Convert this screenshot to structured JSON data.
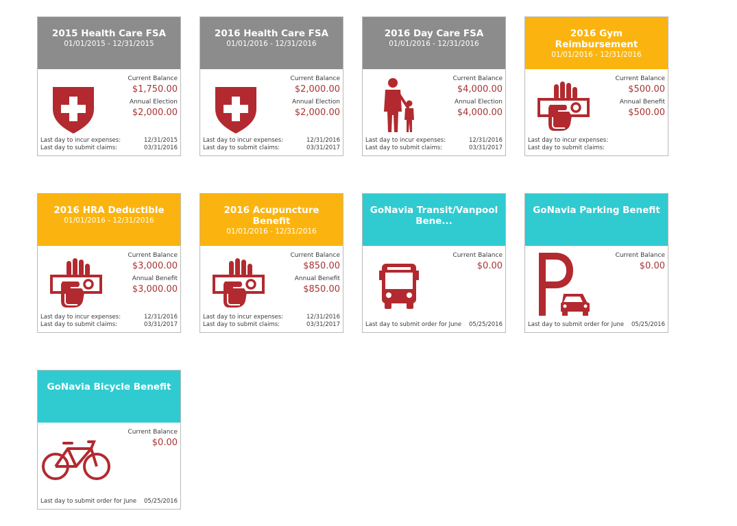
{
  "colors": {
    "gray_header": "#8c8c8c",
    "orange_header": "#fbb40f",
    "teal_header": "#2fcbd1",
    "icon_red": "#b22a2f",
    "amount_red": "#a83232"
  },
  "cards": [
    {
      "title": "2015 Health Care FSA",
      "dates": "01/01/2015 - 12/31/2015",
      "header_color": "gray",
      "icon": "shield-cross-icon",
      "label1": "Current Balance",
      "value1": "$1,750.00",
      "label2": "Annual Election",
      "value2": "$2,000.00",
      "footer": [
        {
          "label": "Last day to incur expenses:",
          "value": "12/31/2015"
        },
        {
          "label": "Last day to submit claims:",
          "value": "03/31/2016"
        }
      ]
    },
    {
      "title": "2016 Health Care FSA",
      "dates": "01/01/2016 - 12/31/2016",
      "header_color": "gray",
      "icon": "shield-cross-icon",
      "label1": "Current Balance",
      "value1": "$2,000.00",
      "label2": "Annual Election",
      "value2": "$2,000.00",
      "footer": [
        {
          "label": "Last day to incur expenses:",
          "value": "12/31/2016"
        },
        {
          "label": "Last day to submit claims:",
          "value": "03/31/2017"
        }
      ]
    },
    {
      "title": "2016 Day Care FSA",
      "dates": "01/01/2016 - 12/31/2016",
      "header_color": "gray",
      "icon": "parent-child-icon",
      "label1": "Current Balance",
      "value1": "$4,000.00",
      "label2": "Annual Election",
      "value2": "$4,000.00",
      "footer": [
        {
          "label": "Last day to incur expenses:",
          "value": "12/31/2016"
        },
        {
          "label": "Last day to submit claims:",
          "value": "03/31/2017"
        }
      ]
    },
    {
      "title": "2016 Gym Reimbursement",
      "dates": "01/01/2016 - 12/31/2016",
      "header_color": "orange",
      "icon": "hand-money-icon",
      "label1": "Current Balance",
      "value1": "$500.00",
      "label2": "Annual Benefit",
      "value2": "$500.00",
      "footer": [
        {
          "label": "Last day to incur expenses:",
          "value": ""
        },
        {
          "label": "Last day to submit claims:",
          "value": ""
        }
      ]
    },
    {
      "title": "2016 HRA Deductible",
      "dates": "01/01/2016 - 12/31/2016",
      "header_color": "orange",
      "icon": "hand-money-icon",
      "label1": "Current Balance",
      "value1": "$3,000.00",
      "label2": "Annual Benefit",
      "value2": "$3,000.00",
      "footer": [
        {
          "label": "Last day to incur expenses:",
          "value": "12/31/2016"
        },
        {
          "label": "Last day to submit claims:",
          "value": "03/31/2017"
        }
      ]
    },
    {
      "title": "2016 Acupuncture Benefit",
      "dates": "01/01/2016 - 12/31/2016",
      "header_color": "orange",
      "icon": "hand-money-icon",
      "label1": "Current Balance",
      "value1": "$850.00",
      "label2": "Annual Benefit",
      "value2": "$850.00",
      "footer": [
        {
          "label": "Last day to incur expenses:",
          "value": "12/31/2016"
        },
        {
          "label": "Last day to submit claims:",
          "value": "03/31/2017"
        }
      ]
    },
    {
      "title": "GoNavia Transit/Vanpool Bene...",
      "dates": "",
      "header_color": "teal",
      "icon": "bus-icon",
      "label1": "Current Balance",
      "value1": "$0.00",
      "label2": "",
      "value2": "",
      "footer": [
        {
          "label": "Last day to submit order for June",
          "value": "05/25/2016"
        }
      ]
    },
    {
      "title": "GoNavia Parking Benefit",
      "dates": "",
      "header_color": "teal",
      "icon": "parking-car-icon",
      "label1": "Current Balance",
      "value1": "$0.00",
      "label2": "",
      "value2": "",
      "footer": [
        {
          "label": "Last day to submit order for June",
          "value": "05/25/2016"
        }
      ]
    },
    {
      "title": "GoNavia Bicycle Benefit",
      "dates": "",
      "header_color": "teal",
      "icon": "bicycle-icon",
      "label1": "Current Balance",
      "value1": "$0.00",
      "label2": "",
      "value2": "",
      "footer": [
        {
          "label": "Last day to submit order for June",
          "value": "05/25/2016"
        }
      ]
    }
  ]
}
